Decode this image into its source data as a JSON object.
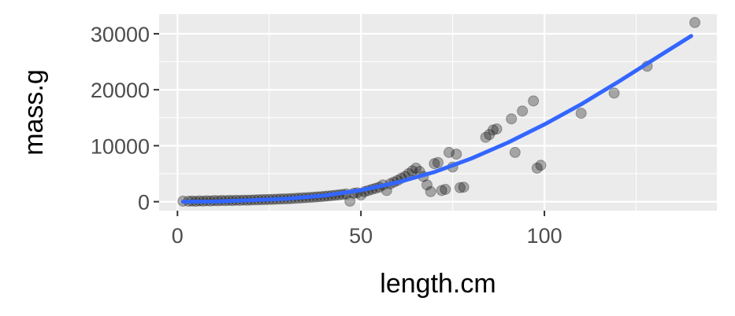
{
  "chart_data": {
    "type": "scatter",
    "xlabel": "length.cm",
    "ylabel": "mass.g",
    "xlim": [
      -5,
      147
    ],
    "ylim": [
      -1600,
      33500
    ],
    "x_ticks": [
      0,
      50,
      100
    ],
    "y_ticks": [
      0,
      10000,
      20000,
      30000
    ],
    "x_tick_labels": [
      "0",
      "50",
      "100"
    ],
    "y_tick_labels": [
      "0",
      "10000",
      "20000",
      "30000"
    ],
    "grid": true,
    "legend": "none",
    "colors": {
      "panel_background": "#ebebeb",
      "grid": "#ffffff",
      "points": "#000000",
      "trend_line": "#3366ff",
      "tick_label": "#4d4d4d"
    },
    "points": [
      [
        1.5,
        100
      ],
      [
        3,
        80
      ],
      [
        4,
        120
      ],
      [
        5,
        60
      ],
      [
        6,
        150
      ],
      [
        7,
        100
      ],
      [
        8,
        180
      ],
      [
        9,
        120
      ],
      [
        10,
        200
      ],
      [
        11,
        150
      ],
      [
        12,
        220
      ],
      [
        13,
        180
      ],
      [
        14,
        240
      ],
      [
        15,
        200
      ],
      [
        16,
        260
      ],
      [
        17,
        230
      ],
      [
        18,
        280
      ],
      [
        19,
        260
      ],
      [
        20,
        300
      ],
      [
        21,
        320
      ],
      [
        22,
        340
      ],
      [
        23,
        360
      ],
      [
        24,
        380
      ],
      [
        25,
        400
      ],
      [
        26,
        420
      ],
      [
        27,
        450
      ],
      [
        28,
        480
      ],
      [
        29,
        500
      ],
      [
        30,
        520
      ],
      [
        31,
        560
      ],
      [
        32,
        600
      ],
      [
        33,
        640
      ],
      [
        34,
        680
      ],
      [
        35,
        720
      ],
      [
        36,
        760
      ],
      [
        37,
        800
      ],
      [
        38,
        850
      ],
      [
        39,
        900
      ],
      [
        40,
        960
      ],
      [
        41,
        1020
      ],
      [
        42,
        1080
      ],
      [
        43,
        1150
      ],
      [
        44,
        1220
      ],
      [
        45,
        1300
      ],
      [
        46,
        1380
      ],
      [
        47,
        100
      ],
      [
        48,
        1500
      ],
      [
        49,
        1600
      ],
      [
        50,
        1200
      ],
      [
        51,
        1800
      ],
      [
        52,
        2000
      ],
      [
        53,
        2200
      ],
      [
        54,
        2400
      ],
      [
        55,
        2600
      ],
      [
        56,
        3000
      ],
      [
        57,
        2000
      ],
      [
        58,
        3200
      ],
      [
        59,
        3500
      ],
      [
        60,
        3800
      ],
      [
        61,
        4200
      ],
      [
        62,
        4500
      ],
      [
        63,
        5000
      ],
      [
        64,
        5500
      ],
      [
        65,
        6000
      ],
      [
        66,
        5400
      ],
      [
        67,
        4500
      ],
      [
        68,
        3000
      ],
      [
        69,
        1800
      ],
      [
        70,
        6800
      ],
      [
        71,
        7000
      ],
      [
        72,
        2000
      ],
      [
        73,
        2200
      ],
      [
        74,
        8800
      ],
      [
        75,
        6200
      ],
      [
        76,
        8500
      ],
      [
        77,
        2500
      ],
      [
        78,
        2600
      ],
      [
        84,
        11500
      ],
      [
        85,
        12000
      ],
      [
        86,
        12800
      ],
      [
        87,
        13000
      ],
      [
        91,
        14800
      ],
      [
        92,
        8800
      ],
      [
        94,
        16200
      ],
      [
        97,
        18000
      ],
      [
        98,
        6000
      ],
      [
        99,
        6500
      ],
      [
        110,
        15800
      ],
      [
        119,
        19400
      ],
      [
        128,
        24200
      ],
      [
        141,
        32000
      ]
    ],
    "trend_line": [
      [
        1.5,
        0
      ],
      [
        10,
        25
      ],
      [
        20,
        250
      ],
      [
        30,
        550
      ],
      [
        40,
        1100
      ],
      [
        50,
        2050
      ],
      [
        60,
        3450
      ],
      [
        70,
        5300
      ],
      [
        80,
        7700
      ],
      [
        90,
        10550
      ],
      [
        100,
        13800
      ],
      [
        110,
        17400
      ],
      [
        120,
        21350
      ],
      [
        130,
        25500
      ],
      [
        140,
        29600
      ]
    ]
  }
}
